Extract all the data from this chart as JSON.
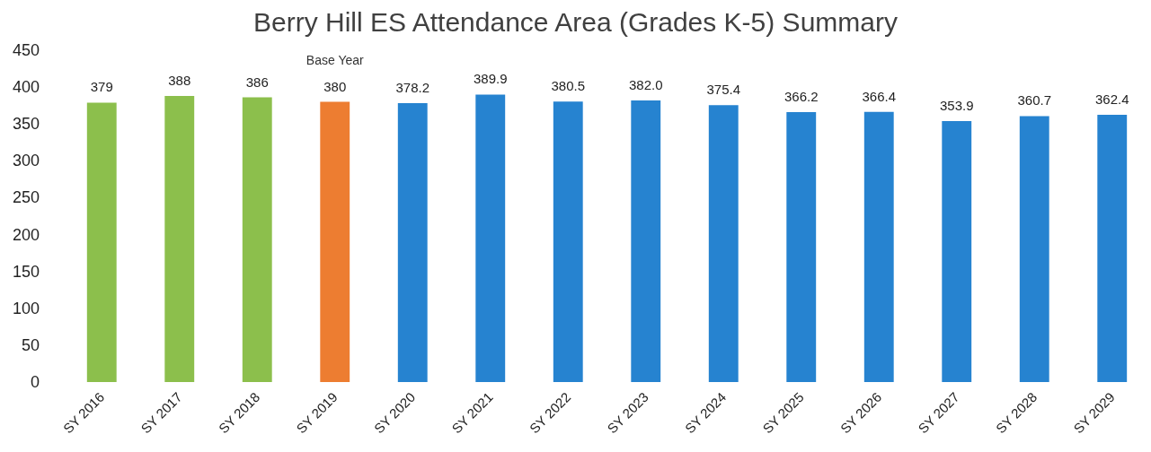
{
  "chart_data": {
    "type": "bar",
    "title": "Berry Hill ES Attendance Area (Grades K-5) Summary",
    "categories": [
      "SY 2016",
      "SY 2017",
      "SY 2018",
      "SY 2019",
      "SY 2020",
      "SY 2021",
      "SY 2022",
      "SY 2023",
      "SY 2024",
      "SY 2025",
      "SY 2026",
      "SY 2027",
      "SY 2028",
      "SY 2029"
    ],
    "values": [
      379,
      388,
      386,
      380,
      378.2,
      389.9,
      380.5,
      382.0,
      375.4,
      366.2,
      366.4,
      353.9,
      360.7,
      362.4
    ],
    "value_labels": [
      "379",
      "388",
      "386",
      "380",
      "378.2",
      "389.9",
      "380.5",
      "382.0",
      "375.4",
      "366.2",
      "366.4",
      "353.9",
      "360.7",
      "362.4"
    ],
    "colors": [
      "#8cbf4c",
      "#8cbf4c",
      "#8cbf4c",
      "#ed7d31",
      "#2683d0",
      "#2683d0",
      "#2683d0",
      "#2683d0",
      "#2683d0",
      "#2683d0",
      "#2683d0",
      "#2683d0",
      "#2683d0",
      "#2683d0"
    ],
    "annotations": [
      {
        "text": "Base Year",
        "x": "SY 2019",
        "y": 380
      }
    ],
    "ylim": [
      0,
      450
    ],
    "yticks": [
      0,
      50,
      100,
      150,
      200,
      250,
      300,
      350,
      400,
      450
    ]
  }
}
